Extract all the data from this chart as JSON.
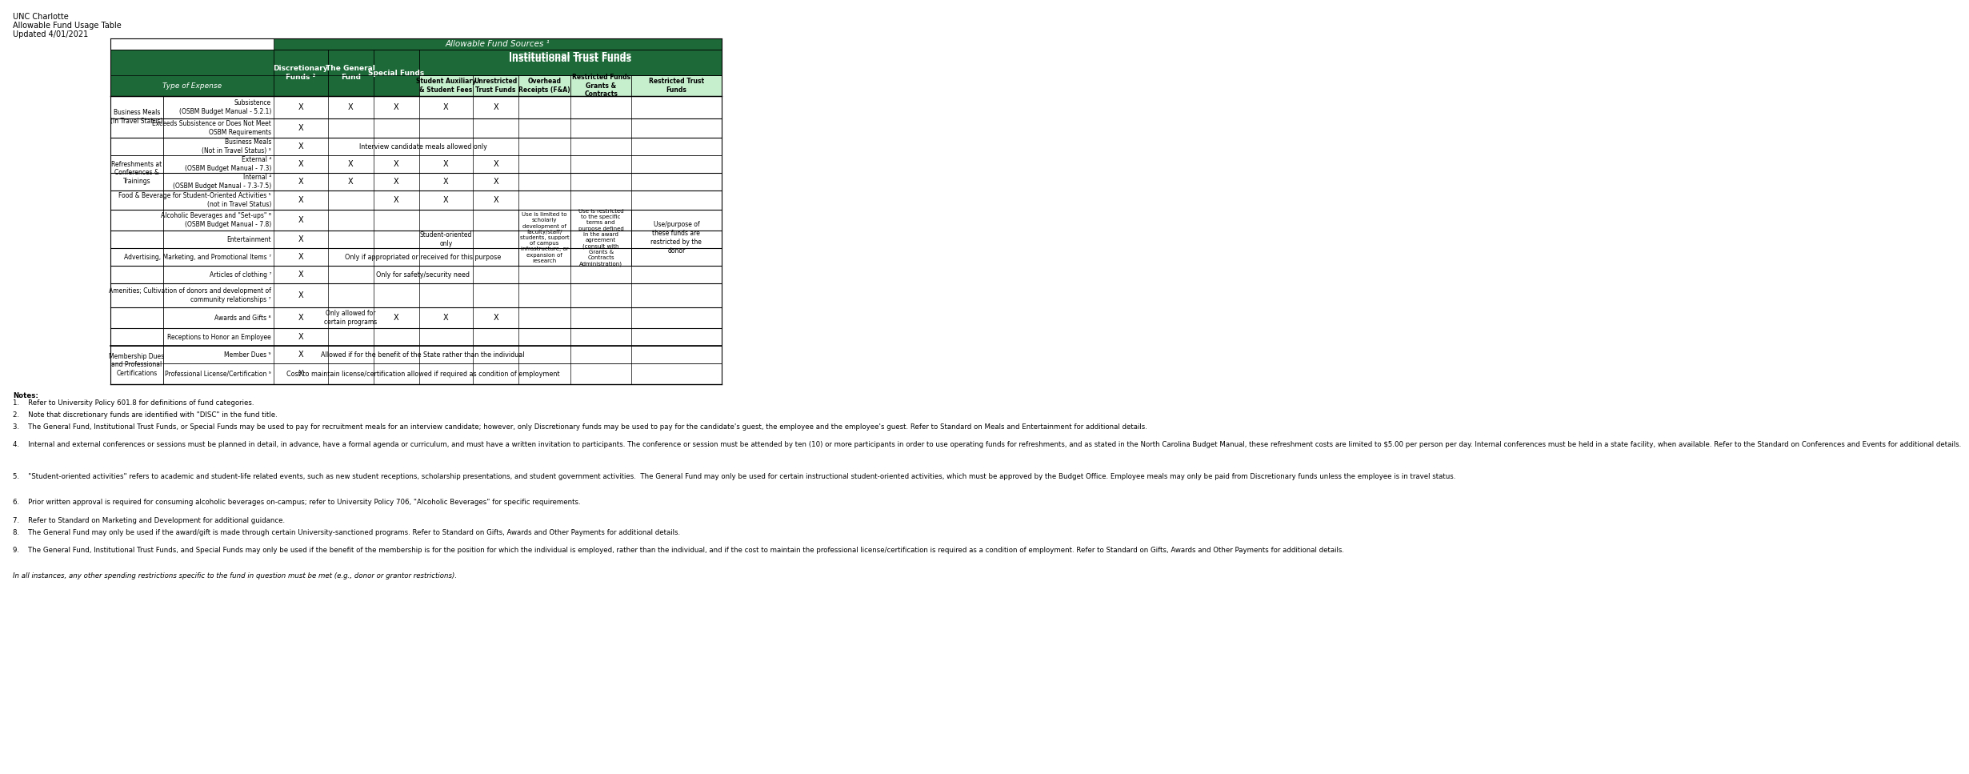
{
  "title_lines": [
    "UNC Charlotte",
    "Allowable Fund Usage Table",
    "Updated 4/01/2021"
  ],
  "dark_green": "#1d6a38",
  "light_green": "#c6efce",
  "white": "#ffffff",
  "black": "#000000",
  "notes_text": [
    [
      "Notes:",
      true,
      false
    ],
    [
      "1.    Refer to University Policy 601.8 for definitions of fund categories.",
      false,
      false
    ],
    [
      "",
      false,
      false
    ],
    [
      "2.    Note that discretionary funds are identified with \"DISC\" in the fund title.",
      false,
      false
    ],
    [
      "",
      false,
      false
    ],
    [
      "3.    The General Fund, Institutional Trust Funds, or Special Funds may be used to pay for recruitment meals for an interview candidate; however, only Discretionary funds may be used to pay for the candidate's guest, the employee and the employee's guest. Refer to Standard on Meals and Entertainment for additional details.",
      false,
      false
    ],
    [
      "",
      false,
      false
    ],
    [
      "4.    Internal and external conferences or sessions must be planned in detail, in advance, have a formal agenda or curriculum, and must have a written invitation to participants. The conference or session must be attended by ten (10) or more participants in order to use operating funds for refreshments, and as stated in the North Carolina Budget Manual, these refreshment costs are limited to $5.00 per person per day. Internal conferences must be held in a state facility, when available. Refer to the Standard on Conferences and Events for additional details.",
      false,
      false
    ],
    [
      "",
      false,
      false
    ],
    [
      "5.    \"Student-oriented activities\" refers to academic and student-life related events, such as new student receptions, scholarship presentations, and student government activities.  The General Fund may only be used for certain instructional student-oriented activities, which must be approved by the Budget Office. Employee meals may only be paid from Discretionary funds unless the employee is in travel status.",
      false,
      false
    ],
    [
      "",
      false,
      false
    ],
    [
      "6.    Prior written approval is required for consuming alcoholic beverages on-campus; refer to University Policy 706, \"Alcoholic Beverages\" for specific requirements.",
      false,
      false
    ],
    [
      "",
      false,
      false
    ],
    [
      "7.    Refer to Standard on Marketing and Development for additional guidance.",
      false,
      false
    ],
    [
      "",
      false,
      false
    ],
    [
      "8.    The General Fund may only be used if the award/gift is made through certain University-sanctioned programs. Refer to Standard on Gifts, Awards and Other Payments for additional details.",
      false,
      false
    ],
    [
      "",
      false,
      false
    ],
    [
      "9.    The General Fund, Institutional Trust Funds, and Special Funds may only be used if the benefit of the membership is for the position for which the individual is employed, rather than the individual, and if the cost to maintain the professional license/certification is required as a condition of employment. Refer to Standard on Gifts, Awards and Other Payments for additional details.",
      false,
      false
    ],
    [
      "",
      false,
      false
    ],
    [
      "In all instances, any other spending restrictions specific to the fund in question must be met (e.g., donor or grantor restrictions).",
      false,
      true
    ]
  ]
}
